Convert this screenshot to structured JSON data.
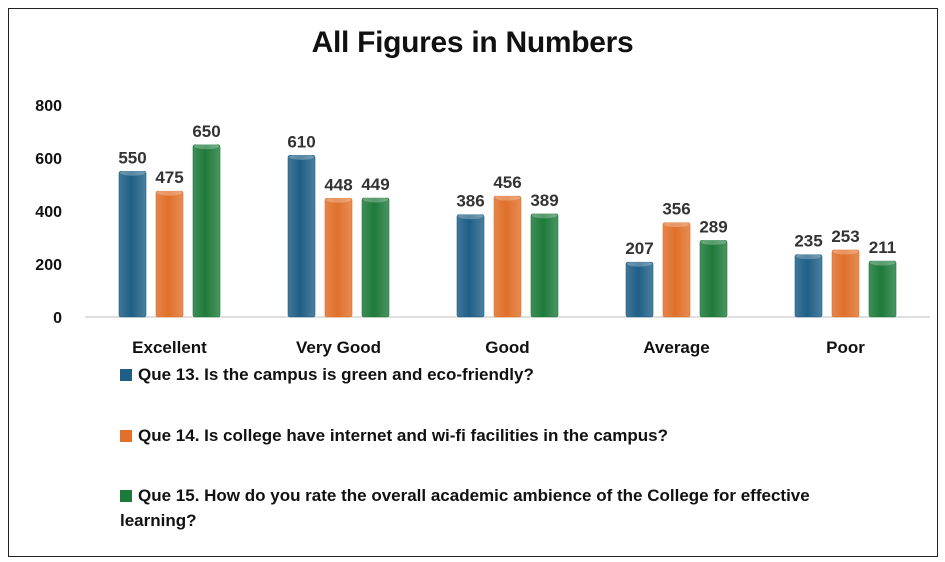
{
  "chart_data": {
    "type": "bar",
    "title": "All Figures in Numbers",
    "categories": [
      "Excellent",
      "Very Good",
      "Good",
      "Average",
      "Poor"
    ],
    "series": [
      {
        "name": "Que 13.  Is the campus is green and eco-friendly?",
        "color": "#1f5f86",
        "values": [
          550,
          610,
          386,
          207,
          235
        ]
      },
      {
        "name": "Que 14. Is college have internet and wi-fi facilities in the campus?",
        "color": "#e0702a",
        "values": [
          475,
          448,
          456,
          356,
          253
        ]
      },
      {
        "name": "Que 15.  How do you rate the overall academic ambience of the College for effective learning?",
        "color": "#1e7a3a",
        "values": [
          650,
          449,
          389,
          289,
          211
        ]
      }
    ],
    "yticks": [
      0,
      200,
      400,
      600,
      800
    ],
    "ylim": [
      0,
      800
    ],
    "grid": false,
    "legend_position": "bottom"
  }
}
